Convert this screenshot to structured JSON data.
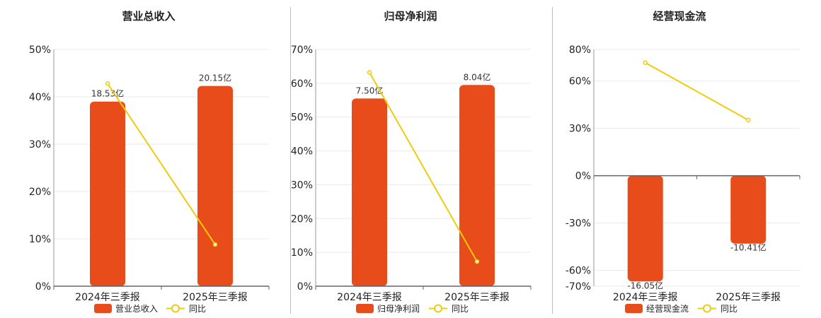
{
  "colors": {
    "bar": "#E84C1A",
    "line": "#F0CB0C",
    "grid": "#E6E9F0",
    "axis": "#666666"
  },
  "legend_labels": {
    "bar_icon": "rect",
    "line_icon": "circle-line"
  },
  "chart_data": [
    {
      "type": "bar",
      "title": "营业总收入",
      "categories": [
        "2024年三季报",
        "2025年三季报"
      ],
      "series": [
        {
          "name": "营业总收入",
          "type": "bar",
          "values": [
            39.0,
            42.3
          ],
          "labels": [
            "18.53亿",
            "20.15亿"
          ]
        },
        {
          "name": "同比",
          "type": "line",
          "values": [
            42.8,
            8.8
          ]
        }
      ],
      "ylim": [
        0,
        50
      ],
      "yticks": [
        "0%",
        "10%",
        "20%",
        "30%",
        "40%",
        "50%"
      ],
      "ytick_values": [
        0,
        10,
        20,
        30,
        40,
        50
      ],
      "grid": true,
      "legend": "bottom"
    },
    {
      "type": "bar",
      "title": "归母净利润",
      "categories": [
        "2024年三季报",
        "2025年三季报"
      ],
      "series": [
        {
          "name": "归母净利润",
          "type": "bar",
          "values": [
            55.5,
            59.5
          ],
          "labels": [
            "7.50亿",
            "8.04亿"
          ]
        },
        {
          "name": "同比",
          "type": "line",
          "values": [
            63.2,
            7.3
          ]
        }
      ],
      "ylim": [
        0,
        70
      ],
      "yticks": [
        "0%",
        "10%",
        "20%",
        "30%",
        "40%",
        "50%",
        "60%",
        "70%"
      ],
      "ytick_values": [
        0,
        10,
        20,
        30,
        40,
        50,
        60,
        70
      ],
      "grid": true,
      "legend": "bottom"
    },
    {
      "type": "bar",
      "title": "经营现金流",
      "categories": [
        "2024年三季报",
        "2025年三季报"
      ],
      "series": [
        {
          "name": "经营现金流",
          "type": "bar",
          "values": [
            -67.0,
            -43.0
          ],
          "labels": [
            "-16.05亿",
            "-10.41亿"
          ]
        },
        {
          "name": "同比",
          "type": "line",
          "values": [
            71.6,
            35.3
          ]
        }
      ],
      "ylim": [
        -70,
        80
      ],
      "yticks": [
        "-70%",
        "-60%",
        "-30%",
        "0%",
        "30%",
        "60%",
        "80%"
      ],
      "ytick_values": [
        -70,
        -60,
        -30,
        0,
        30,
        60,
        80
      ],
      "grid": true,
      "legend": "bottom"
    }
  ]
}
